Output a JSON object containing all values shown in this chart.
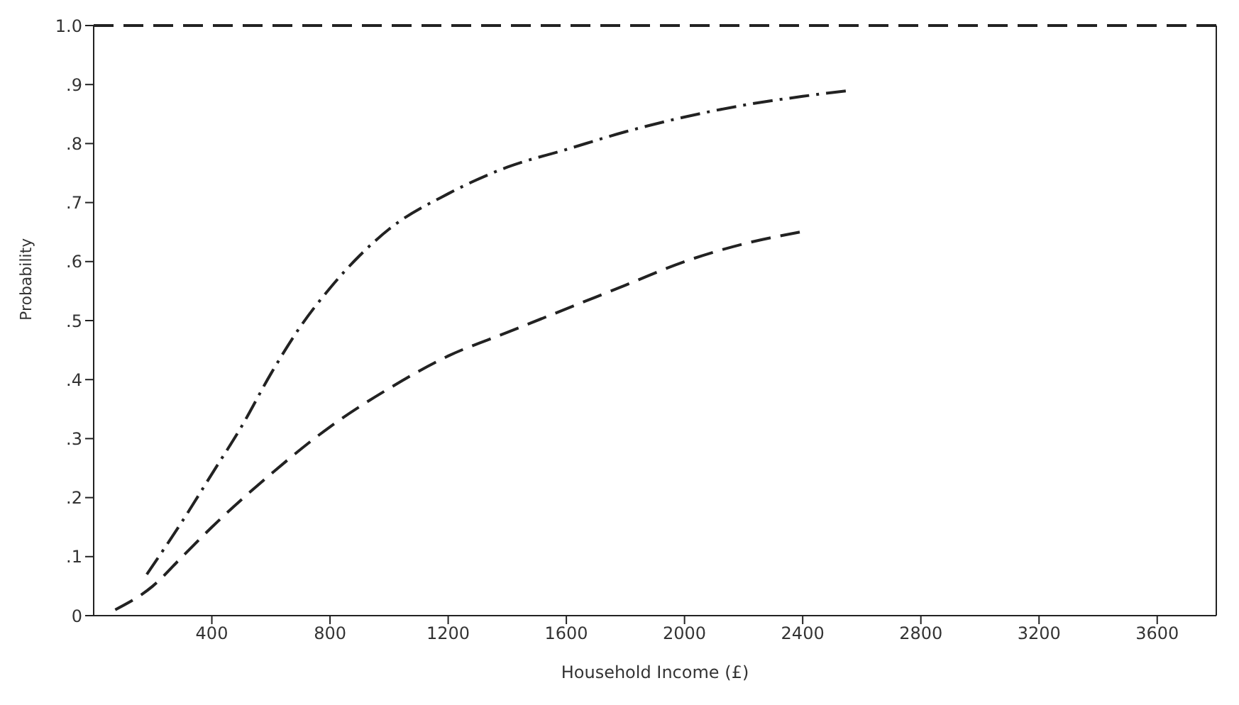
{
  "chart_data": {
    "type": "line",
    "xlabel": "Household  Income  (£)",
    "ylabel": "Probability",
    "xlim": [
      0,
      3800
    ],
    "xticks": [
      400,
      800,
      1200,
      1600,
      2000,
      2400,
      2800,
      3200,
      3600
    ],
    "ylim": [
      0,
      1
    ],
    "yticks": [
      0,
      {
        "value": 0.1,
        "label": ".1"
      },
      {
        "value": 0.2,
        "label": ".2"
      },
      {
        "value": 0.3,
        "label": ".3"
      },
      {
        "value": 0.4,
        "label": ".4"
      },
      {
        "value": 0.5,
        "label": ".5"
      },
      {
        "value": 0.6,
        "label": ".6"
      },
      {
        "value": 0.7,
        "label": ".7"
      },
      {
        "value": 0.8,
        "label": ".8"
      },
      {
        "value": 0.9,
        "label": ".9"
      },
      {
        "value": 1,
        "label": "1.0"
      }
    ],
    "grid": false,
    "marker": "none",
    "ref_lines": [
      {
        "axis": "y",
        "value": 1,
        "line_style": "dashed",
        "color": "#222222"
      }
    ],
    "series": [
      {
        "color": "#222222",
        "line_style": "dashdot",
        "x": [
          180,
          300,
          400,
          500,
          600,
          700,
          800,
          900,
          1000,
          1200,
          1400,
          1600,
          1800,
          2000,
          2200,
          2400,
          2560
        ],
        "values": [
          0.07,
          0.16,
          0.24,
          0.32,
          0.41,
          0.49,
          0.555,
          0.61,
          0.655,
          0.715,
          0.76,
          0.79,
          0.82,
          0.845,
          0.865,
          0.88,
          0.89
        ]
      },
      {
        "color": "#222222",
        "line_style": "dashed",
        "x": [
          73,
          200,
          300,
          400,
          600,
          800,
          1000,
          1200,
          1400,
          1600,
          1800,
          2000,
          2200,
          2390
        ],
        "values": [
          0.01,
          0.05,
          0.1,
          0.15,
          0.24,
          0.32,
          0.385,
          0.44,
          0.48,
          0.52,
          0.56,
          0.6,
          0.63,
          0.65
        ]
      }
    ]
  }
}
